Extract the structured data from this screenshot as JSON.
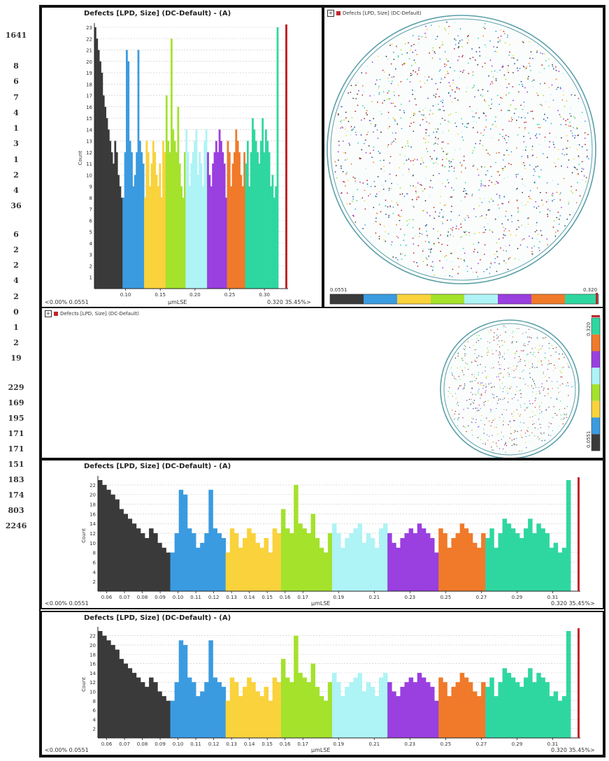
{
  "left_numbers": [
    "1641",
    "8",
    "6",
    "7",
    "4",
    "1",
    "3",
    "1",
    "2",
    "4",
    "36",
    "6",
    "2",
    "2",
    "4",
    "2",
    "0",
    "1",
    "2",
    "19",
    "229",
    "169",
    "195",
    "171",
    "171",
    "151",
    "183",
    "174",
    "803",
    "2246"
  ],
  "panels": {
    "hist_top": {
      "title": "Defects [LPD, Size] (DC-Default) - (A)",
      "ylabel": "Count",
      "xlabel": "µmLSE",
      "left_range": "<0.00%  0.0551",
      "right_range": "0.320  35.45%>"
    },
    "wafer_map_top": {
      "header": "Defects [LPD, Size] (DC-Default)",
      "scale_min": "0.0551",
      "scale_max": "0.320"
    },
    "wafer_map_wide": {
      "header": "Defects [LPD, Size] (DC-Default)",
      "scale_min": "0.0551",
      "scale_max": "0.320"
    },
    "hist_mid": {
      "title": "Defects [LPD, Size] (DC-Default) - (A)",
      "ylabel": "Count",
      "xlabel": "µmLSE",
      "left_range": "<0.00%  0.0551",
      "right_range": "0.320  35.45%>"
    },
    "hist_bottom": {
      "title": "Defects [LPD, Size] (DC-Default) - (A)",
      "ylabel": "Count",
      "xlabel": "µmLSE",
      "left_range": "<0.00%  0.0551",
      "right_range": "0.320  35.45%>"
    }
  },
  "colors": {
    "bins": [
      "#3a3a3a",
      "#3b9be0",
      "#f9d23c",
      "#a4e22c",
      "#aef3f5",
      "#9a3fe0",
      "#f07a2a",
      "#2fd7a0"
    ],
    "accent_red": "#c0262d",
    "wafer_ring": "#5a9fa8"
  },
  "chart_data": [
    {
      "type": "bar",
      "title": "Defects [LPD, Size] (DC-Default) - (A)",
      "xlabel": "µmLSE",
      "ylabel": "Count",
      "xlim": [
        0.0551,
        0.32
      ],
      "ylim": [
        0,
        23
      ],
      "x_ticks": [
        "0.10",
        "0.15",
        "0.20",
        "0.25",
        "0.30"
      ],
      "y_ticks": [
        "1",
        "2",
        "3",
        "4",
        "5",
        "6",
        "7",
        "8",
        "9",
        "10",
        "11",
        "12",
        "13",
        "14",
        "15",
        "16",
        "17",
        "18",
        "19",
        "20",
        "21",
        "22",
        "23"
      ],
      "bin_start": 0.0551,
      "bin_width": 0.0028,
      "values": [
        23,
        22,
        21,
        20,
        19,
        17,
        16,
        15,
        14,
        13,
        12,
        11,
        13,
        12,
        10,
        9,
        8,
        8,
        12,
        21,
        20,
        13,
        12,
        9,
        10,
        12,
        21,
        13,
        12,
        11,
        8,
        13,
        12,
        9,
        11,
        13,
        12,
        10,
        9,
        11,
        8,
        13,
        12,
        17,
        13,
        12,
        22,
        14,
        13,
        12,
        16,
        11,
        9,
        8,
        12,
        14,
        12,
        9,
        11,
        12,
        13,
        14,
        10,
        12,
        11,
        9,
        13,
        14,
        12,
        10,
        9,
        11,
        12,
        13,
        12,
        14,
        13,
        12,
        11,
        8,
        13,
        12,
        9,
        11,
        12,
        14,
        13,
        12,
        10,
        9,
        12,
        11,
        13,
        9,
        12,
        15,
        14,
        13,
        12,
        11,
        13,
        15,
        12,
        14,
        13,
        12,
        9,
        10,
        8,
        9,
        23
      ],
      "bin_colors": [
        0,
        0,
        0,
        0,
        0,
        0,
        0,
        0,
        0,
        0,
        0,
        0,
        0,
        0,
        0,
        0,
        0,
        1,
        1,
        1,
        1,
        1,
        1,
        1,
        1,
        1,
        1,
        1,
        1,
        1,
        2,
        2,
        2,
        2,
        2,
        2,
        2,
        2,
        2,
        2,
        2,
        2,
        2,
        3,
        3,
        3,
        3,
        3,
        3,
        3,
        3,
        3,
        3,
        3,
        3,
        4,
        4,
        4,
        4,
        4,
        4,
        4,
        4,
        4,
        4,
        4,
        4,
        4,
        5,
        5,
        5,
        5,
        5,
        5,
        5,
        5,
        5,
        5,
        5,
        5,
        6,
        6,
        6,
        6,
        6,
        6,
        6,
        6,
        6,
        6,
        6,
        7,
        7,
        7,
        7,
        7,
        7,
        7,
        7,
        7,
        7,
        7,
        7,
        7,
        7,
        7,
        7,
        7,
        7,
        7,
        7
      ]
    },
    {
      "type": "bar",
      "title": "Defects [LPD, Size] (DC-Default) - (A)",
      "xlabel": "µmLSE",
      "ylabel": "Count",
      "xlim": [
        0.0551,
        0.32
      ],
      "ylim": [
        0,
        23
      ],
      "x_ticks": [
        "0.06",
        "0.07",
        "0.08",
        "0.09",
        "0.10",
        "0.11",
        "0.12",
        "0.13",
        "0.14",
        "0.15",
        "0.16",
        "0.17",
        "0.19",
        "0.21",
        "0.23",
        "0.25",
        "0.27",
        "0.29",
        "0.31"
      ],
      "y_ticks": [
        "2",
        "4",
        "6",
        "8",
        "10",
        "12",
        "14",
        "16",
        "18",
        "20",
        "22"
      ],
      "values": [
        23,
        22,
        21,
        20,
        19,
        17,
        16,
        15,
        14,
        13,
        12,
        11,
        13,
        12,
        10,
        9,
        8,
        8,
        12,
        21,
        20,
        13,
        12,
        9,
        10,
        12,
        21,
        13,
        12,
        11,
        8,
        13,
        12,
        9,
        11,
        13,
        12,
        10,
        9,
        11,
        8,
        13,
        12,
        17,
        13,
        12,
        22,
        14,
        13,
        12,
        16,
        11,
        9,
        8,
        12,
        14,
        12,
        9,
        11,
        12,
        13,
        14,
        10,
        12,
        11,
        9,
        13,
        14,
        12,
        10,
        9,
        11,
        12,
        13,
        12,
        14,
        13,
        12,
        11,
        8,
        13,
        12,
        9,
        11,
        12,
        14,
        13,
        12,
        10,
        9,
        12,
        11,
        13,
        9,
        12,
        15,
        14,
        13,
        12,
        11,
        13,
        15,
        12,
        14,
        13,
        12,
        9,
        10,
        8,
        9,
        23
      ]
    },
    {
      "type": "bar",
      "title": "Defects [LPD, Size] (DC-Default) - (A)",
      "xlabel": "µmLSE",
      "ylabel": "Count",
      "xlim": [
        0.0551,
        0.32
      ],
      "ylim": [
        0,
        23
      ],
      "x_ticks": [
        "0.06",
        "0.07",
        "0.08",
        "0.09",
        "0.10",
        "0.11",
        "0.12",
        "0.13",
        "0.14",
        "0.15",
        "0.16",
        "0.17",
        "0.19",
        "0.21",
        "0.23",
        "0.25",
        "0.27",
        "0.29",
        "0.31"
      ],
      "y_ticks": [
        "2",
        "4",
        "6",
        "8",
        "10",
        "12",
        "14",
        "16",
        "18",
        "20",
        "22"
      ],
      "values": [
        23,
        22,
        21,
        20,
        19,
        17,
        16,
        15,
        14,
        13,
        12,
        11,
        13,
        12,
        10,
        9,
        8,
        8,
        12,
        21,
        20,
        13,
        12,
        9,
        10,
        12,
        21,
        13,
        12,
        11,
        8,
        13,
        12,
        9,
        11,
        13,
        12,
        10,
        9,
        11,
        8,
        13,
        12,
        17,
        13,
        12,
        22,
        14,
        13,
        12,
        16,
        11,
        9,
        8,
        12,
        14,
        12,
        9,
        11,
        12,
        13,
        14,
        10,
        12,
        11,
        9,
        13,
        14,
        12,
        10,
        9,
        11,
        12,
        13,
        12,
        14,
        13,
        12,
        11,
        8,
        13,
        12,
        9,
        11,
        12,
        14,
        13,
        12,
        10,
        9,
        12,
        11,
        13,
        9,
        12,
        15,
        14,
        13,
        12,
        11,
        13,
        15,
        12,
        14,
        13,
        12,
        9,
        10,
        8,
        9,
        23
      ]
    }
  ]
}
